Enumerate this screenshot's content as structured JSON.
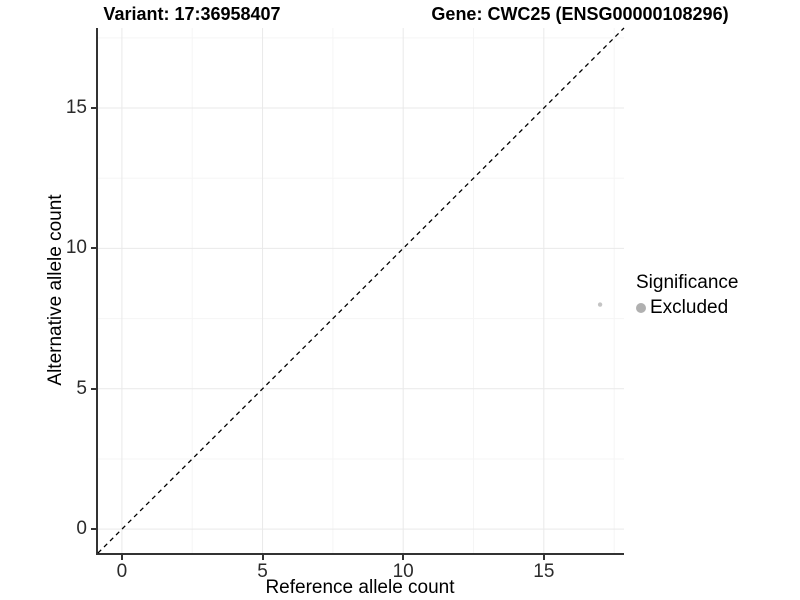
{
  "titles": {
    "variant": "Variant: 17:36958407",
    "gene": "Gene: CWC25 (ENSG00000108296)"
  },
  "chart_data": {
    "type": "scatter",
    "xlabel": "Reference allele count",
    "ylabel": "Alternative allele count",
    "xlim": [
      -0.85,
      17.85
    ],
    "ylim": [
      -0.85,
      17.85
    ],
    "x_ticks": [
      0,
      5,
      10,
      15
    ],
    "y_ticks": [
      0,
      5,
      10,
      15
    ],
    "x_minor_ticks": [
      2.5,
      7.5,
      12.5,
      17.5
    ],
    "y_minor_ticks": [
      2.5,
      7.5,
      12.5,
      17.5
    ],
    "grid": true,
    "identity_line": {
      "type": "abline",
      "slope": 1,
      "intercept": 0,
      "style": "dashed",
      "color": "#000000"
    },
    "series": [
      {
        "name": "Excluded",
        "color": "#c4c4c4",
        "points": [
          {
            "x": 17,
            "y": 8
          }
        ]
      }
    ],
    "legend": {
      "title": "Significance",
      "position": "right",
      "entries": [
        {
          "label": "Excluded",
          "color": "#b0b0b0"
        }
      ]
    }
  },
  "colors": {
    "background": "#ffffff",
    "axis_line": "#333333",
    "tick": "#333333",
    "tick_label": "#2b2b2b",
    "grid_major": "#e9e9e9",
    "grid_minor": "#f5f5f5",
    "dashed_line": "#000000",
    "point": "#c4c4c4",
    "legend_key": "#b0b0b0"
  }
}
